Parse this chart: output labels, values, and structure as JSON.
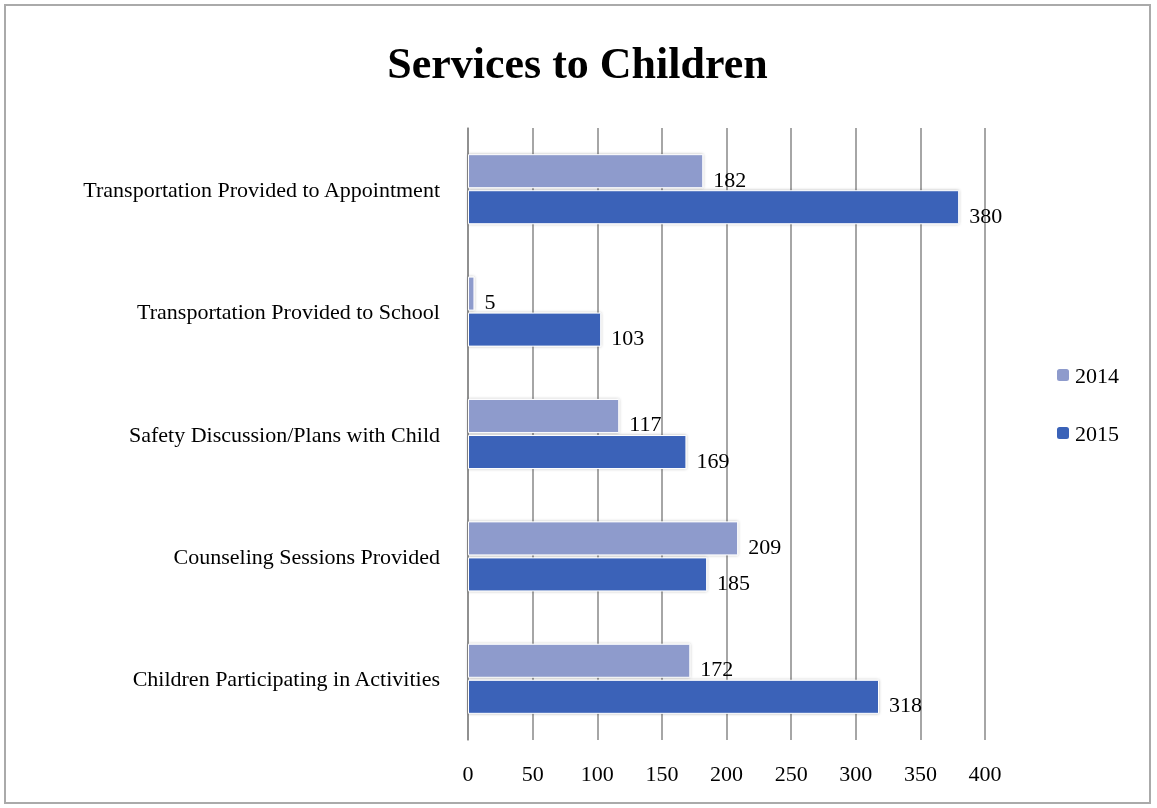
{
  "chart_data": {
    "type": "bar",
    "orientation": "horizontal",
    "title": "Services to Children",
    "categories": [
      "Transportation Provided to Appointment",
      "Transportation Provided to School",
      "Safety Discussion/Plans with Child",
      "Counseling Sessions Provided",
      "Children Participating in Activities"
    ],
    "series": [
      {
        "name": "2014",
        "color": "#8e9bcc",
        "values": [
          182,
          5,
          117,
          209,
          172
        ]
      },
      {
        "name": "2015",
        "color": "#3a62b8",
        "values": [
          380,
          103,
          169,
          185,
          318
        ]
      }
    ],
    "xlim": [
      0,
      400
    ],
    "xticks": [
      0,
      50,
      100,
      150,
      200,
      250,
      300,
      350,
      400
    ],
    "grid": "x",
    "legend": "right",
    "data_labels": true
  }
}
